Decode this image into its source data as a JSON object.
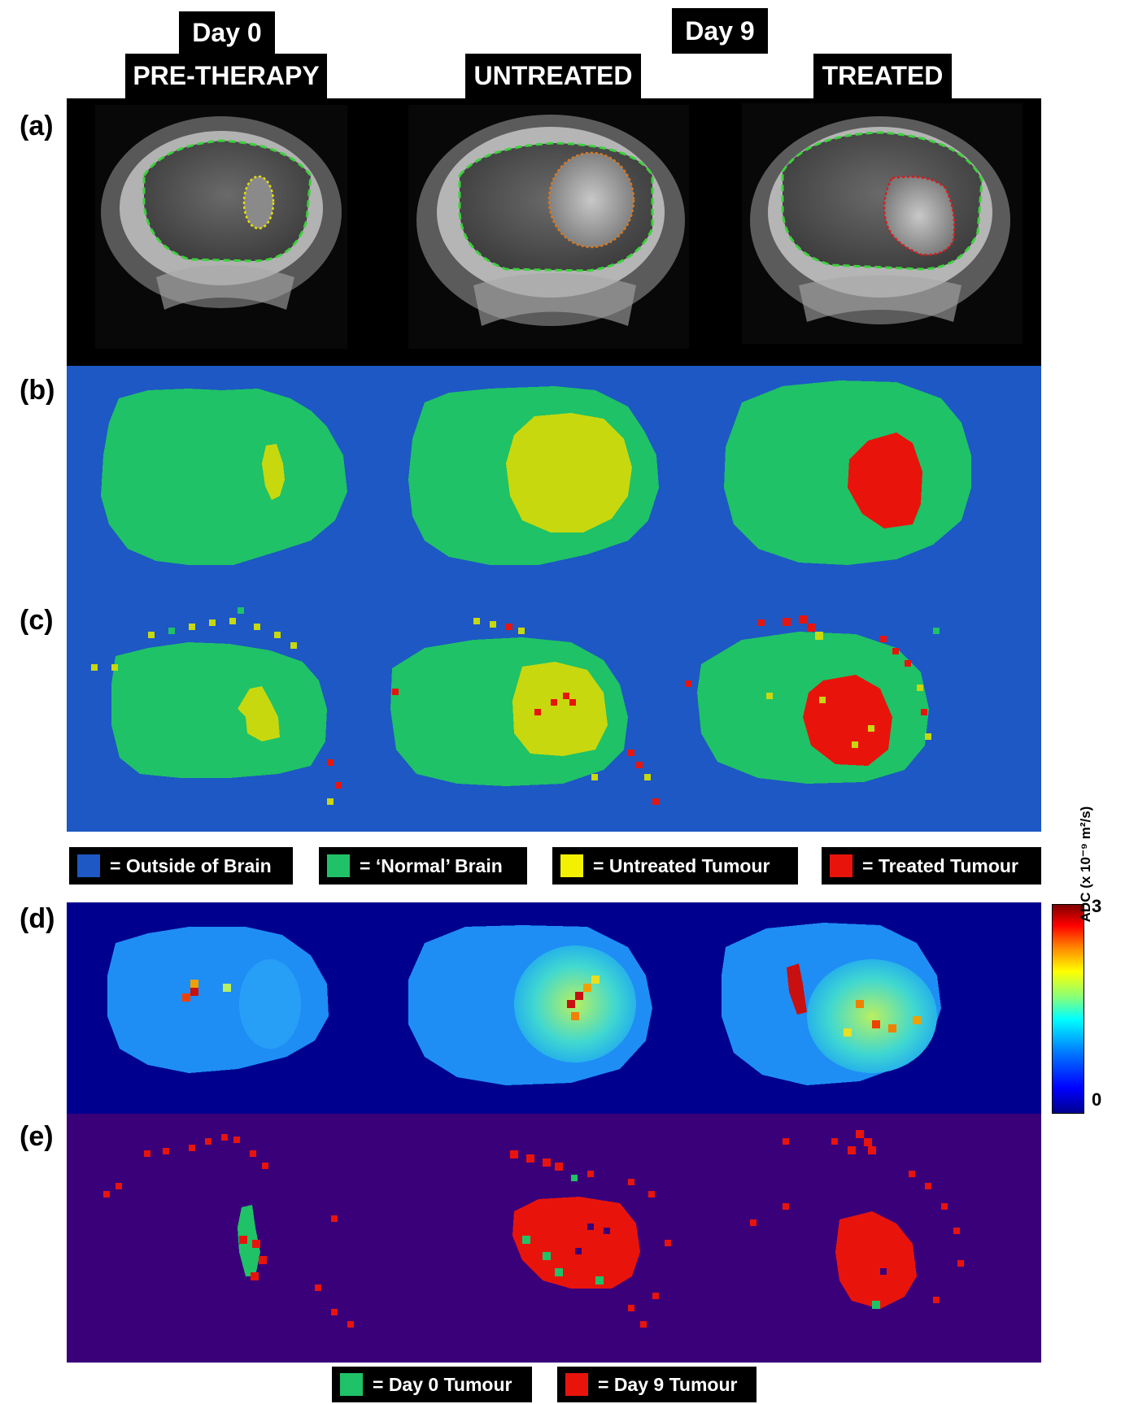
{
  "headers": {
    "day0": "Day 0",
    "day9": "Day 9",
    "col1": "PRE-THERAPY",
    "col2": "UNTREATED",
    "col3": "TREATED"
  },
  "row_labels": [
    "(a)",
    "(b)",
    "(c)",
    "(d)",
    "(e)"
  ],
  "legend_classes": [
    {
      "label": "= Outside of Brain",
      "color": "#1d58c4"
    },
    {
      "label": "= ‘Normal’ Brain",
      "color": "#1fc266"
    },
    {
      "label": "= Untreated Tumour",
      "color": "#f2f200"
    },
    {
      "label": "= Treated Tumour",
      "color": "#e8140c"
    }
  ],
  "legend_tumour": [
    {
      "label": "= Day 0 Tumour",
      "color": "#1fc266"
    },
    {
      "label": "= Day 9 Tumour",
      "color": "#e8140c"
    }
  ],
  "colorbar": {
    "title": "ADC (x 10⁻⁹ m²/s)",
    "max_label": "3",
    "min_label": "0"
  },
  "colors": {
    "mri_background": "#000000",
    "brain_outline": "#3cd23c",
    "tumour_outline_day0": "#e8e000",
    "tumour_outline_untreated": "#e07818",
    "tumour_outline_treated": "#e01818",
    "outside_brain": "#1d58c4",
    "normal_brain": "#1fc266",
    "untreated_tumour": "#c8d80e",
    "treated_tumour": "#e8140c",
    "adc_background": "#00008f",
    "tumour_map_background": "#3a007a"
  }
}
